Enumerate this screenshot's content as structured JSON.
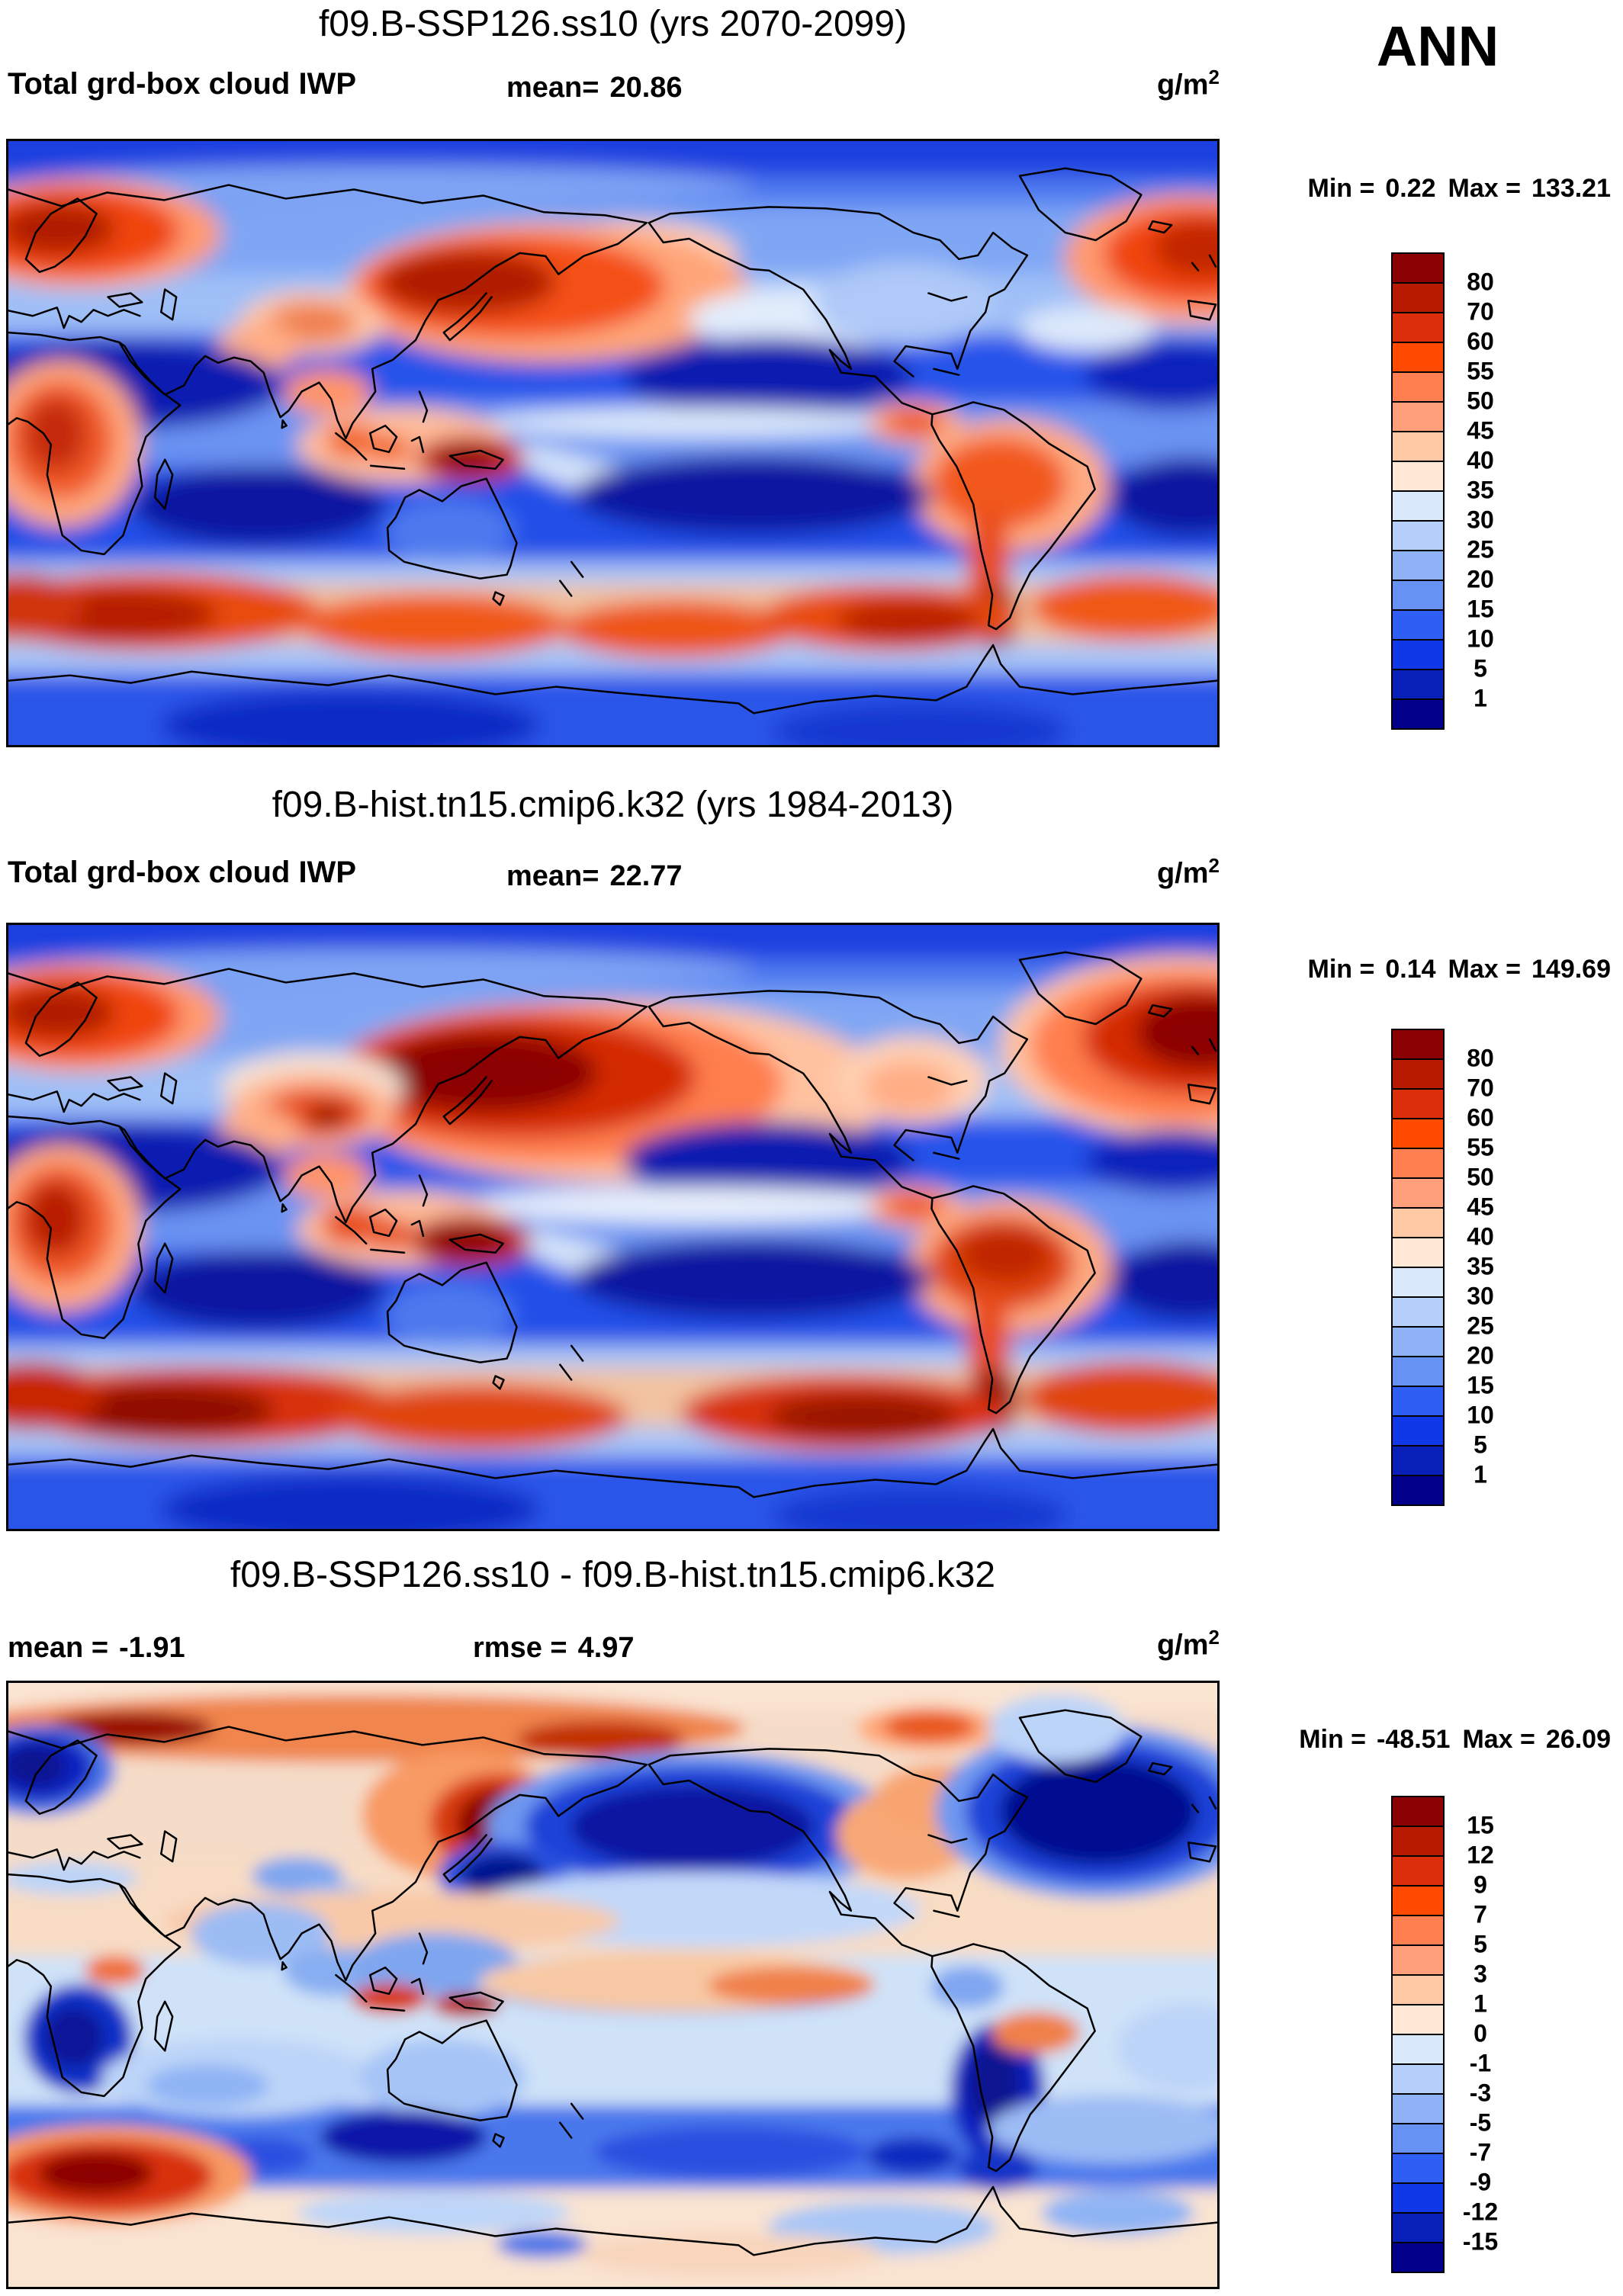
{
  "season_label": "ANN",
  "colorbar_colors": [
    "#8B0000",
    "#B81A00",
    "#DC2E0A",
    "#FF4A00",
    "#FF7F50",
    "#FFA07A",
    "#FFC9A5",
    "#FFE8D5",
    "#D9E9FB",
    "#B6CFF8",
    "#8FB2F7",
    "#6693F3",
    "#2E5FF2",
    "#1038E8",
    "#0820B8",
    "#00008B"
  ],
  "panels": [
    {
      "title": "f09.B-SSP126.ss10 (yrs 2070-2099)",
      "field_label": "Total grd-box cloud IWP",
      "mean_label": "mean=",
      "mean_value": "20.86",
      "units_base": "g/m",
      "units_exp": "2",
      "min_label": "Min =",
      "min_value": "0.22",
      "max_label": "Max =",
      "max_value": "133.21",
      "colorbar_labels": [
        "80",
        "70",
        "60",
        "55",
        "50",
        "45",
        "40",
        "35",
        "30",
        "25",
        "20",
        "15",
        "10",
        "5",
        "1"
      ]
    },
    {
      "title": "f09.B-hist.tn15.cmip6.k32 (yrs 1984-2013)",
      "field_label": "Total grd-box cloud IWP",
      "mean_label": "mean=",
      "mean_value": "22.77",
      "units_base": "g/m",
      "units_exp": "2",
      "min_label": "Min =",
      "min_value": "0.14",
      "max_label": "Max =",
      "max_value": "149.69",
      "colorbar_labels": [
        "80",
        "70",
        "60",
        "55",
        "50",
        "45",
        "40",
        "35",
        "30",
        "25",
        "20",
        "15",
        "10",
        "5",
        "1"
      ]
    },
    {
      "title": "f09.B-SSP126.ss10 - f09.B-hist.tn15.cmip6.k32",
      "mean_label": "mean =",
      "mean_value": "-1.91",
      "rmse_label": "rmse =",
      "rmse_value": "4.97",
      "units_base": "g/m",
      "units_exp": "2",
      "min_label": "Min =",
      "min_value": "-48.51",
      "max_label": "Max =",
      "max_value": "26.09",
      "colorbar_labels": [
        "15",
        "12",
        "9",
        "7",
        "5",
        "3",
        "1",
        "0",
        "-1",
        "-3",
        "-5",
        "-7",
        "-9",
        "-12",
        "-15"
      ]
    }
  ],
  "chart_data": [
    {
      "type": "heatmap",
      "subtype": "filled-contour global map (equirectangular, Pacific-centered, lon 0-360E, lat 90N-90S)",
      "title": "f09.B-SSP126.ss10 (yrs 2070-2099)",
      "variable": "Total grd-box cloud IWP",
      "season": "ANN",
      "units": "g/m2",
      "mean": 20.86,
      "min": 0.22,
      "max": 133.21,
      "contour_levels": [
        1,
        5,
        10,
        15,
        20,
        25,
        30,
        35,
        40,
        45,
        50,
        55,
        60,
        70,
        80
      ],
      "palette_top_to_bottom": [
        "#8B0000",
        "#B81A00",
        "#DC2E0A",
        "#FF4A00",
        "#FF7F50",
        "#FFA07A",
        "#FFC9A5",
        "#FFE8D5",
        "#D9E9FB",
        "#B6CFF8",
        "#8FB2F7",
        "#6693F3",
        "#2E5FF2",
        "#1038E8",
        "#0820B8",
        "#00008B"
      ],
      "pattern_notes": "High IWP (>40, red) over NW Pacific storm track, Norwegian Sea, N Atlantic, Tibet, tropical land (Maritime Continent/New Guinea, Amazon-Andes, Central Africa) and a circumpolar Southern Ocean band near 45-60S; low IWP (<15, blue/navy) over subtropical oceans, Sahara-Arabia and polar caps."
    },
    {
      "type": "heatmap",
      "subtype": "filled-contour global map (equirectangular, Pacific-centered, lon 0-360E, lat 90N-90S)",
      "title": "f09.B-hist.tn15.cmip6.k32 (yrs 1984-2013)",
      "variable": "Total grd-box cloud IWP",
      "season": "ANN",
      "units": "g/m2",
      "mean": 22.77,
      "min": 0.14,
      "max": 149.69,
      "contour_levels": [
        1,
        5,
        10,
        15,
        20,
        25,
        30,
        35,
        40,
        45,
        50,
        55,
        60,
        70,
        80
      ],
      "palette_top_to_bottom": [
        "#8B0000",
        "#B81A00",
        "#DC2E0A",
        "#FF4A00",
        "#FF7F50",
        "#FFA07A",
        "#FFC9A5",
        "#FFE8D5",
        "#D9E9FB",
        "#B6CFF8",
        "#8FB2F7",
        "#6693F3",
        "#2E5FF2",
        "#1038E8",
        "#0820B8",
        "#00008B"
      ],
      "pattern_notes": "Same pattern as SSP126 panel but more intense: darker red cores (>80) over NW Pacific, N Atlantic south of Greenland, Tibet, New Guinea, southern Andes and the Southern Ocean storm track."
    },
    {
      "type": "heatmap",
      "subtype": "difference map (SSP126 minus historical), filled contours",
      "title": "f09.B-SSP126.ss10 - f09.B-hist.tn15.cmip6.k32",
      "variable": "Total grd-box cloud IWP difference",
      "season": "ANN",
      "units": "g/m2",
      "mean": -1.91,
      "rmse": 4.97,
      "min": -48.51,
      "max": 26.09,
      "contour_levels": [
        -15,
        -12,
        -9,
        -7,
        -5,
        -3,
        -1,
        0,
        1,
        3,
        5,
        7,
        9,
        12,
        15
      ],
      "palette_top_to_bottom": [
        "#8B0000",
        "#B81A00",
        "#DC2E0A",
        "#FF4A00",
        "#FF7F50",
        "#FFA07A",
        "#FFC9A5",
        "#FFE8D5",
        "#D9E9FB",
        "#B6CFF8",
        "#8FB2F7",
        "#6693F3",
        "#2E5FF2",
        "#1038E8",
        "#0820B8",
        "#00008B"
      ],
      "pattern_notes": "Mostly weak changes (pale). Strong decreases (navy) over N Atlantic, Gulf of Alaska/N Pacific, sea of Japan, Norwegian Sea, Congo, Andes and SH high-latitude ocean; strong increases (dark red) along the Arctic Siberian coast, Kamchatka/Okhotsk and a Southern Ocean blob near 60S; weak increase bands across NH mid-latitude land and south-equatorial Pacific."
    }
  ]
}
